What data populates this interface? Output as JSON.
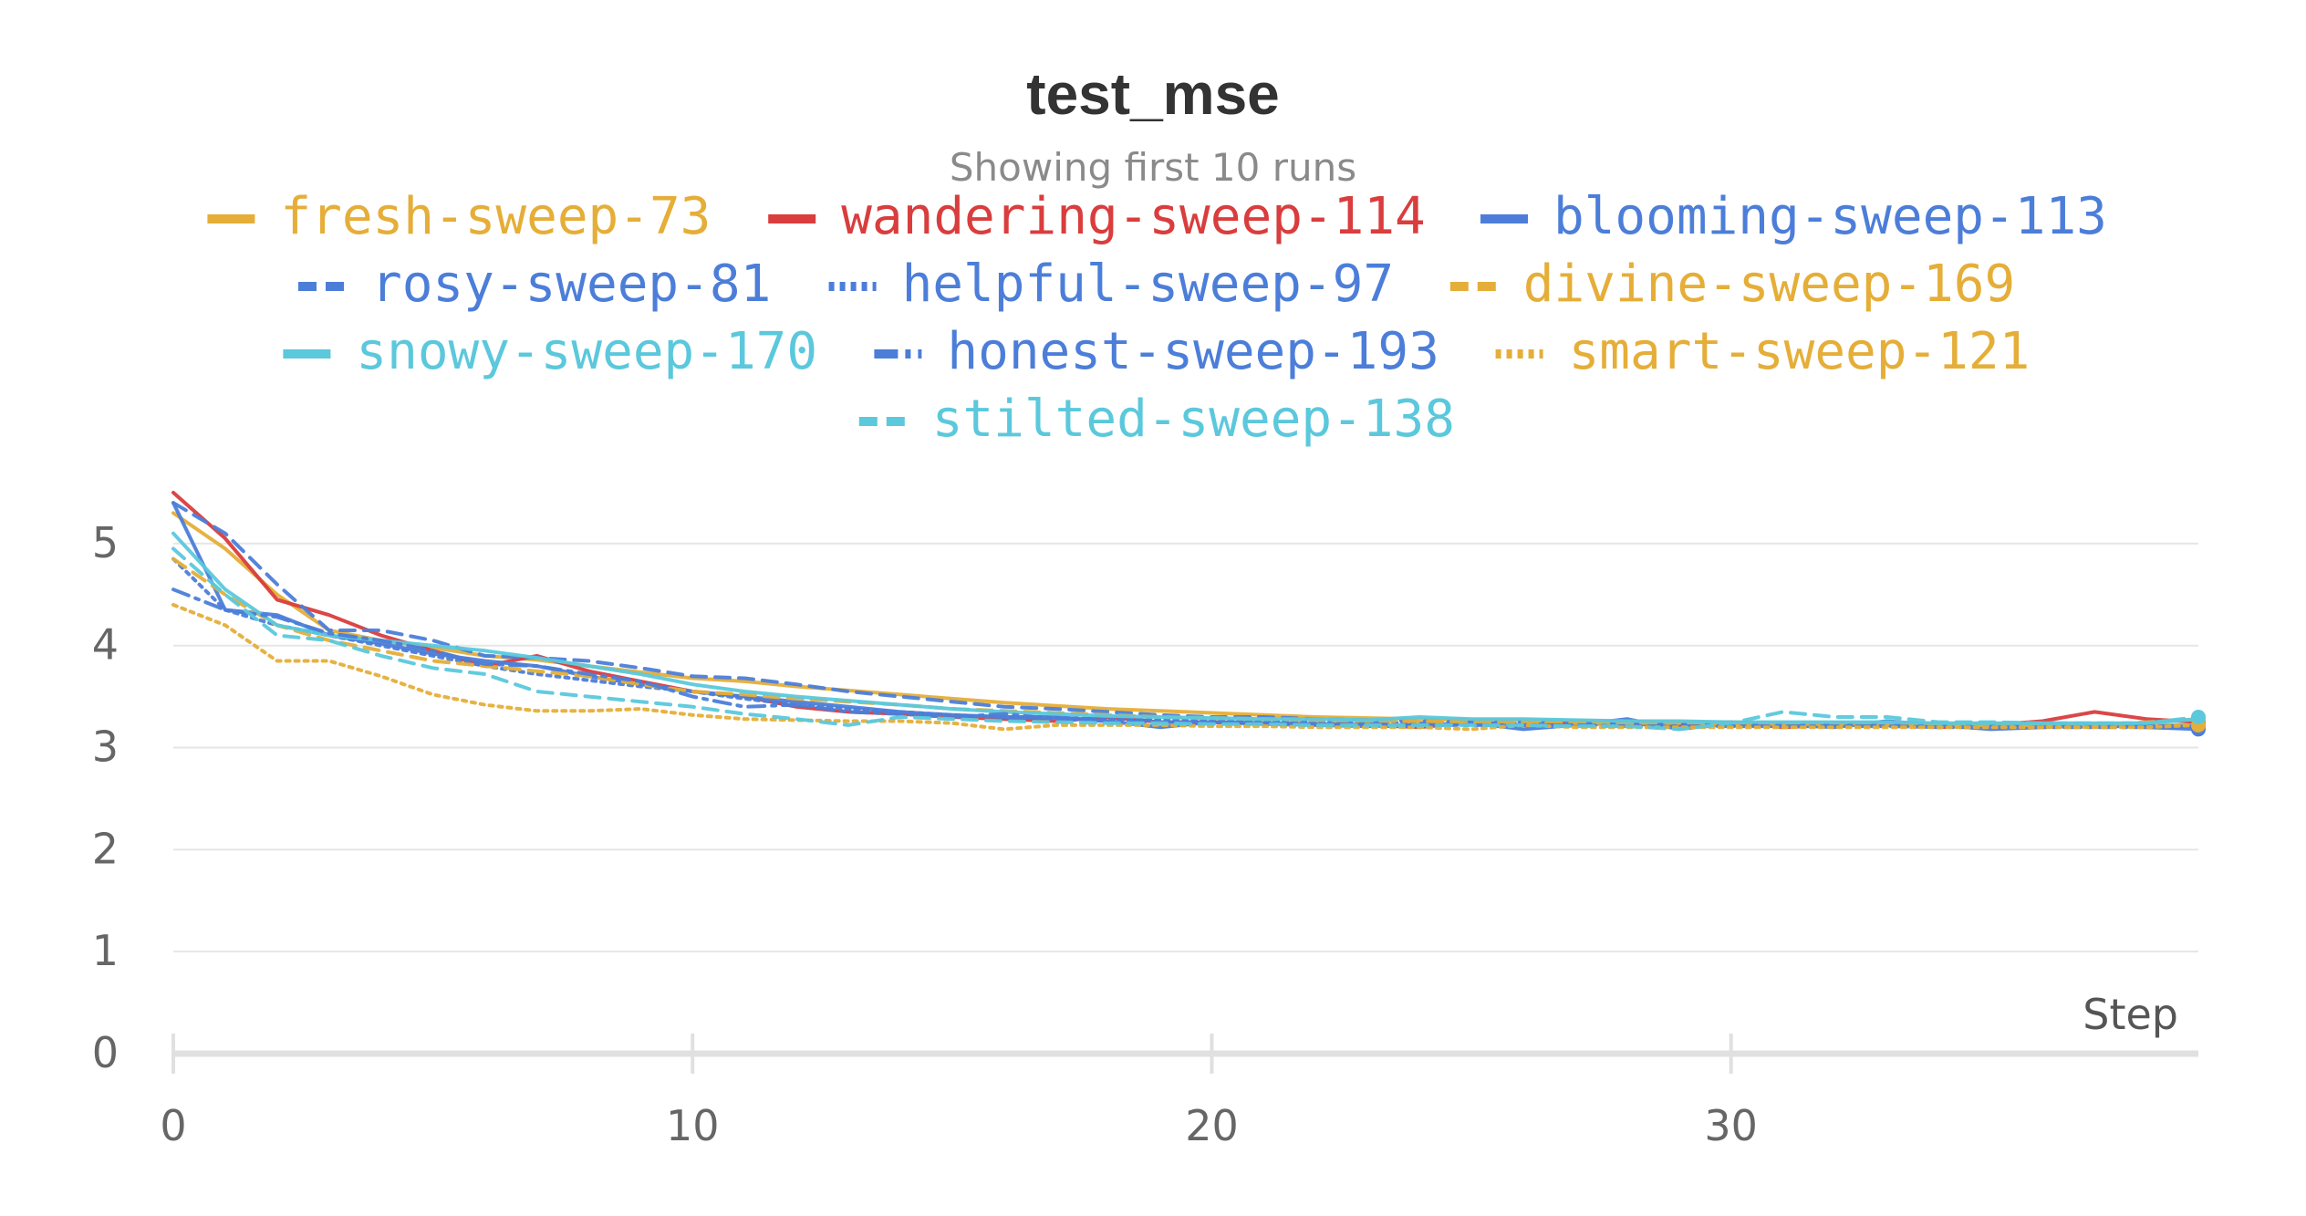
{
  "chart_data": {
    "type": "line",
    "title": "test_mse",
    "subtitle": "Showing first 10 runs",
    "xlabel": "Step",
    "ylabel": "",
    "xlim": [
      0,
      39
    ],
    "ylim": [
      0,
      5.5
    ],
    "x_ticks": [
      "0",
      "10",
      "20",
      "30"
    ],
    "y_ticks": [
      "0",
      "1",
      "2",
      "3",
      "4",
      "5"
    ],
    "x_tick_values": [
      0,
      10,
      20,
      30
    ],
    "y_tick_values": [
      0,
      1,
      2,
      3,
      4,
      5
    ],
    "grid": true,
    "legend_position": "top-center",
    "x": [
      0,
      1,
      2,
      3,
      4,
      5,
      6,
      7,
      8,
      9,
      10,
      11,
      12,
      13,
      14,
      15,
      16,
      17,
      18,
      19,
      20,
      21,
      22,
      23,
      24,
      25,
      26,
      27,
      28,
      29,
      30,
      31,
      32,
      33,
      34,
      35,
      36,
      37,
      38,
      39
    ],
    "series": [
      {
        "name": "fresh-sweep-73",
        "color": "#e5ae38",
        "dash": "solid",
        "values": [
          5.3,
          4.95,
          4.5,
          4.15,
          4.05,
          3.98,
          3.9,
          3.86,
          3.8,
          3.74,
          3.68,
          3.65,
          3.6,
          3.56,
          3.52,
          3.48,
          3.44,
          3.41,
          3.38,
          3.36,
          3.34,
          3.32,
          3.3,
          3.29,
          3.28,
          3.27,
          3.27,
          3.26,
          3.26,
          3.25,
          3.25,
          3.24,
          3.24,
          3.24,
          3.23,
          3.23,
          3.23,
          3.22,
          3.22,
          3.22
        ]
      },
      {
        "name": "wandering-sweep-114",
        "color": "#d93d3d",
        "dash": "solid",
        "values": [
          5.5,
          5.05,
          4.45,
          4.3,
          4.1,
          3.95,
          3.8,
          3.9,
          3.75,
          3.65,
          3.55,
          3.5,
          3.4,
          3.35,
          3.33,
          3.3,
          3.28,
          3.26,
          3.3,
          3.25,
          3.25,
          3.24,
          3.23,
          3.22,
          3.2,
          3.25,
          3.22,
          3.24,
          3.23,
          3.22,
          3.25,
          3.2,
          3.22,
          3.24,
          3.2,
          3.22,
          3.26,
          3.35,
          3.28,
          3.25
        ]
      },
      {
        "name": "blooming-sweep-113",
        "color": "#4c7ed9",
        "dash": "solid",
        "values": [
          5.4,
          4.35,
          4.3,
          4.1,
          4.02,
          3.92,
          3.85,
          3.8,
          3.7,
          3.62,
          3.55,
          3.5,
          3.45,
          3.4,
          3.35,
          3.32,
          3.3,
          3.3,
          3.26,
          3.2,
          3.25,
          3.23,
          3.22,
          3.21,
          3.22,
          3.24,
          3.18,
          3.22,
          3.28,
          3.18,
          3.24,
          3.22,
          3.2,
          3.26,
          3.22,
          3.18,
          3.2,
          3.22,
          3.2,
          3.18
        ]
      },
      {
        "name": "rosy-sweep-81",
        "color": "#4c7ed9",
        "dash": "dashed",
        "values": [
          5.4,
          5.1,
          4.6,
          4.15,
          4.15,
          4.05,
          3.9,
          3.88,
          3.85,
          3.78,
          3.7,
          3.68,
          3.62,
          3.55,
          3.5,
          3.45,
          3.4,
          3.38,
          3.35,
          3.32,
          3.3,
          3.3,
          3.28,
          3.27,
          3.26,
          3.25,
          3.25,
          3.24,
          3.24,
          3.23,
          3.23,
          3.23,
          3.22,
          3.22,
          3.22,
          3.22,
          3.21,
          3.21,
          3.21,
          3.21
        ]
      },
      {
        "name": "helpful-sweep-97",
        "color": "#4c7ed9",
        "dash": "dotted",
        "values": [
          4.85,
          4.35,
          4.2,
          4.1,
          4.0,
          3.9,
          3.8,
          3.72,
          3.66,
          3.6,
          3.55,
          3.48,
          3.42,
          3.38,
          3.35,
          3.32,
          3.3,
          3.29,
          3.28,
          3.27,
          3.26,
          3.26,
          3.25,
          3.25,
          3.24,
          3.24,
          3.23,
          3.23,
          3.23,
          3.22,
          3.22,
          3.22,
          3.22,
          3.22,
          3.21,
          3.21,
          3.21,
          3.21,
          3.21,
          3.21
        ]
      },
      {
        "name": "divine-sweep-169",
        "color": "#e5ae38",
        "dash": "dashed",
        "values": [
          4.85,
          4.5,
          4.2,
          4.05,
          3.95,
          3.85,
          3.8,
          3.75,
          3.7,
          3.62,
          3.55,
          3.52,
          3.48,
          3.45,
          3.42,
          3.38,
          3.36,
          3.34,
          3.32,
          3.3,
          3.29,
          3.28,
          3.27,
          3.26,
          3.26,
          3.25,
          3.25,
          3.24,
          3.24,
          3.24,
          3.23,
          3.23,
          3.23,
          3.23,
          3.22,
          3.22,
          3.22,
          3.22,
          3.25,
          3.28
        ]
      },
      {
        "name": "snowy-sweep-170",
        "color": "#5bc8dc",
        "dash": "solid",
        "values": [
          5.1,
          4.55,
          4.2,
          4.1,
          4.05,
          4.0,
          3.95,
          3.88,
          3.8,
          3.72,
          3.62,
          3.55,
          3.5,
          3.46,
          3.42,
          3.38,
          3.35,
          3.33,
          3.31,
          3.3,
          3.29,
          3.28,
          3.28,
          3.27,
          3.3,
          3.28,
          3.28,
          3.27,
          3.26,
          3.26,
          3.25,
          3.25,
          3.25,
          3.25,
          3.24,
          3.24,
          3.24,
          3.24,
          3.24,
          3.28
        ]
      },
      {
        "name": "honest-sweep-193",
        "color": "#4c7ed9",
        "dash": "dashdot",
        "values": [
          4.55,
          4.35,
          4.28,
          4.12,
          4.05,
          3.95,
          3.82,
          3.8,
          3.72,
          3.65,
          3.5,
          3.4,
          3.42,
          3.35,
          3.33,
          3.3,
          3.33,
          3.28,
          3.26,
          3.25,
          3.25,
          3.24,
          3.23,
          3.23,
          3.22,
          3.22,
          3.22,
          3.22,
          3.21,
          3.21,
          3.21,
          3.21,
          3.21,
          3.21,
          3.2,
          3.2,
          3.2,
          3.2,
          3.2,
          3.2
        ]
      },
      {
        "name": "smart-sweep-121",
        "color": "#e5ae38",
        "dash": "dotted",
        "values": [
          4.4,
          4.2,
          3.85,
          3.85,
          3.7,
          3.52,
          3.42,
          3.36,
          3.36,
          3.38,
          3.32,
          3.28,
          3.27,
          3.26,
          3.26,
          3.24,
          3.18,
          3.22,
          3.22,
          3.22,
          3.21,
          3.21,
          3.2,
          3.2,
          3.2,
          3.18,
          3.22,
          3.2,
          3.2,
          3.2,
          3.2,
          3.2,
          3.2,
          3.2,
          3.2,
          3.2,
          3.2,
          3.2,
          3.2,
          3.22
        ]
      },
      {
        "name": "stilted-sweep-138",
        "color": "#5bc8dc",
        "dash": "dashed",
        "values": [
          4.95,
          4.5,
          4.1,
          4.05,
          3.9,
          3.78,
          3.72,
          3.55,
          3.5,
          3.45,
          3.4,
          3.33,
          3.28,
          3.22,
          3.3,
          3.28,
          3.26,
          3.25,
          3.24,
          3.24,
          3.23,
          3.23,
          3.22,
          3.22,
          3.22,
          3.22,
          3.22,
          3.21,
          3.21,
          3.18,
          3.24,
          3.35,
          3.3,
          3.3,
          3.25,
          3.25,
          3.24,
          3.24,
          3.24,
          3.3
        ]
      }
    ]
  }
}
